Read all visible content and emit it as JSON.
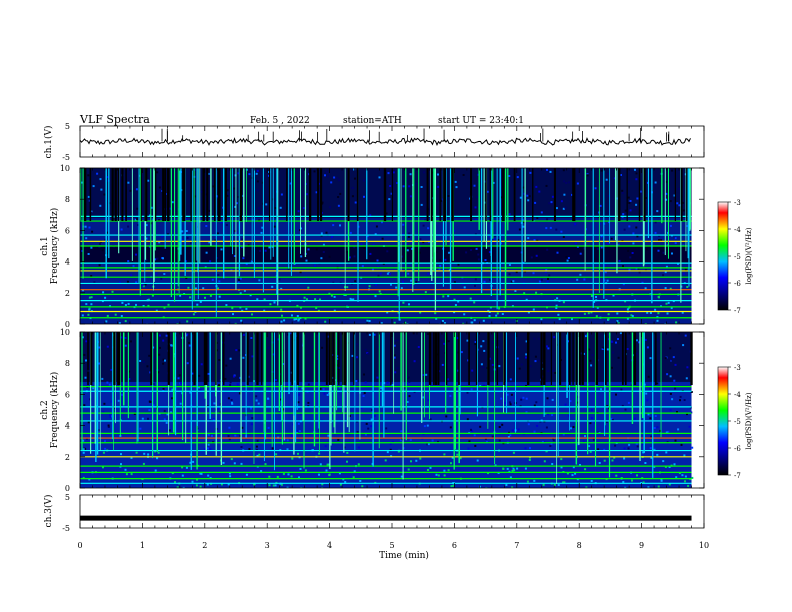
{
  "header": {
    "title": "VLF Spectra",
    "date": "Feb. 5 , 2022",
    "station": "station=ATH",
    "start": "start UT = 23:40:1"
  },
  "colorbar": {
    "ticks": [
      "-3",
      "-4",
      "-5",
      "-6",
      "-7"
    ],
    "label": "log(PSD)(V²/Hz)"
  },
  "chart_data": [
    {
      "type": "line",
      "title": "",
      "ylabel": "ch.1(V)",
      "xlabel": "",
      "xlim": [
        0,
        10
      ],
      "ylim": [
        -5,
        5
      ],
      "yticks": [
        "5",
        "-5"
      ],
      "baseline_v": 0.0,
      "description_visible": "noisy waveform near 0 V spanning 0–9.8 min with sparse spikes"
    },
    {
      "type": "heatmap",
      "title": "",
      "ylabel": "ch.1\nFrequency (kHz)",
      "xlabel": "",
      "xlim": [
        0,
        10
      ],
      "ylim": [
        0,
        10
      ],
      "yticks": [
        "0",
        "2",
        "4",
        "6",
        "8",
        "10"
      ],
      "zlim": [
        -7,
        -3
      ],
      "zlabel": "log(PSD)(V²/Hz)",
      "data_end_min": 9.8
    },
    {
      "type": "heatmap",
      "title": "",
      "ylabel": "ch.2\nFrequency (kHz)",
      "xlabel": "",
      "xlim": [
        0,
        10
      ],
      "ylim": [
        0,
        10
      ],
      "yticks": [
        "0",
        "2",
        "4",
        "6",
        "8",
        "10"
      ],
      "zlim": [
        -7,
        -3
      ],
      "zlabel": "log(PSD)(V²/Hz)",
      "data_end_min": 9.8
    },
    {
      "type": "line",
      "title": "",
      "ylabel": "ch.3(V)",
      "xlabel": "Time (min)",
      "xlim": [
        0,
        10
      ],
      "ylim": [
        -5,
        5
      ],
      "yticks": [
        "5",
        "-5"
      ],
      "xticks": [
        "0",
        "1",
        "2",
        "3",
        "4",
        "5",
        "6",
        "7",
        "8",
        "9",
        "10"
      ],
      "baseline_v": -2.0
    }
  ]
}
